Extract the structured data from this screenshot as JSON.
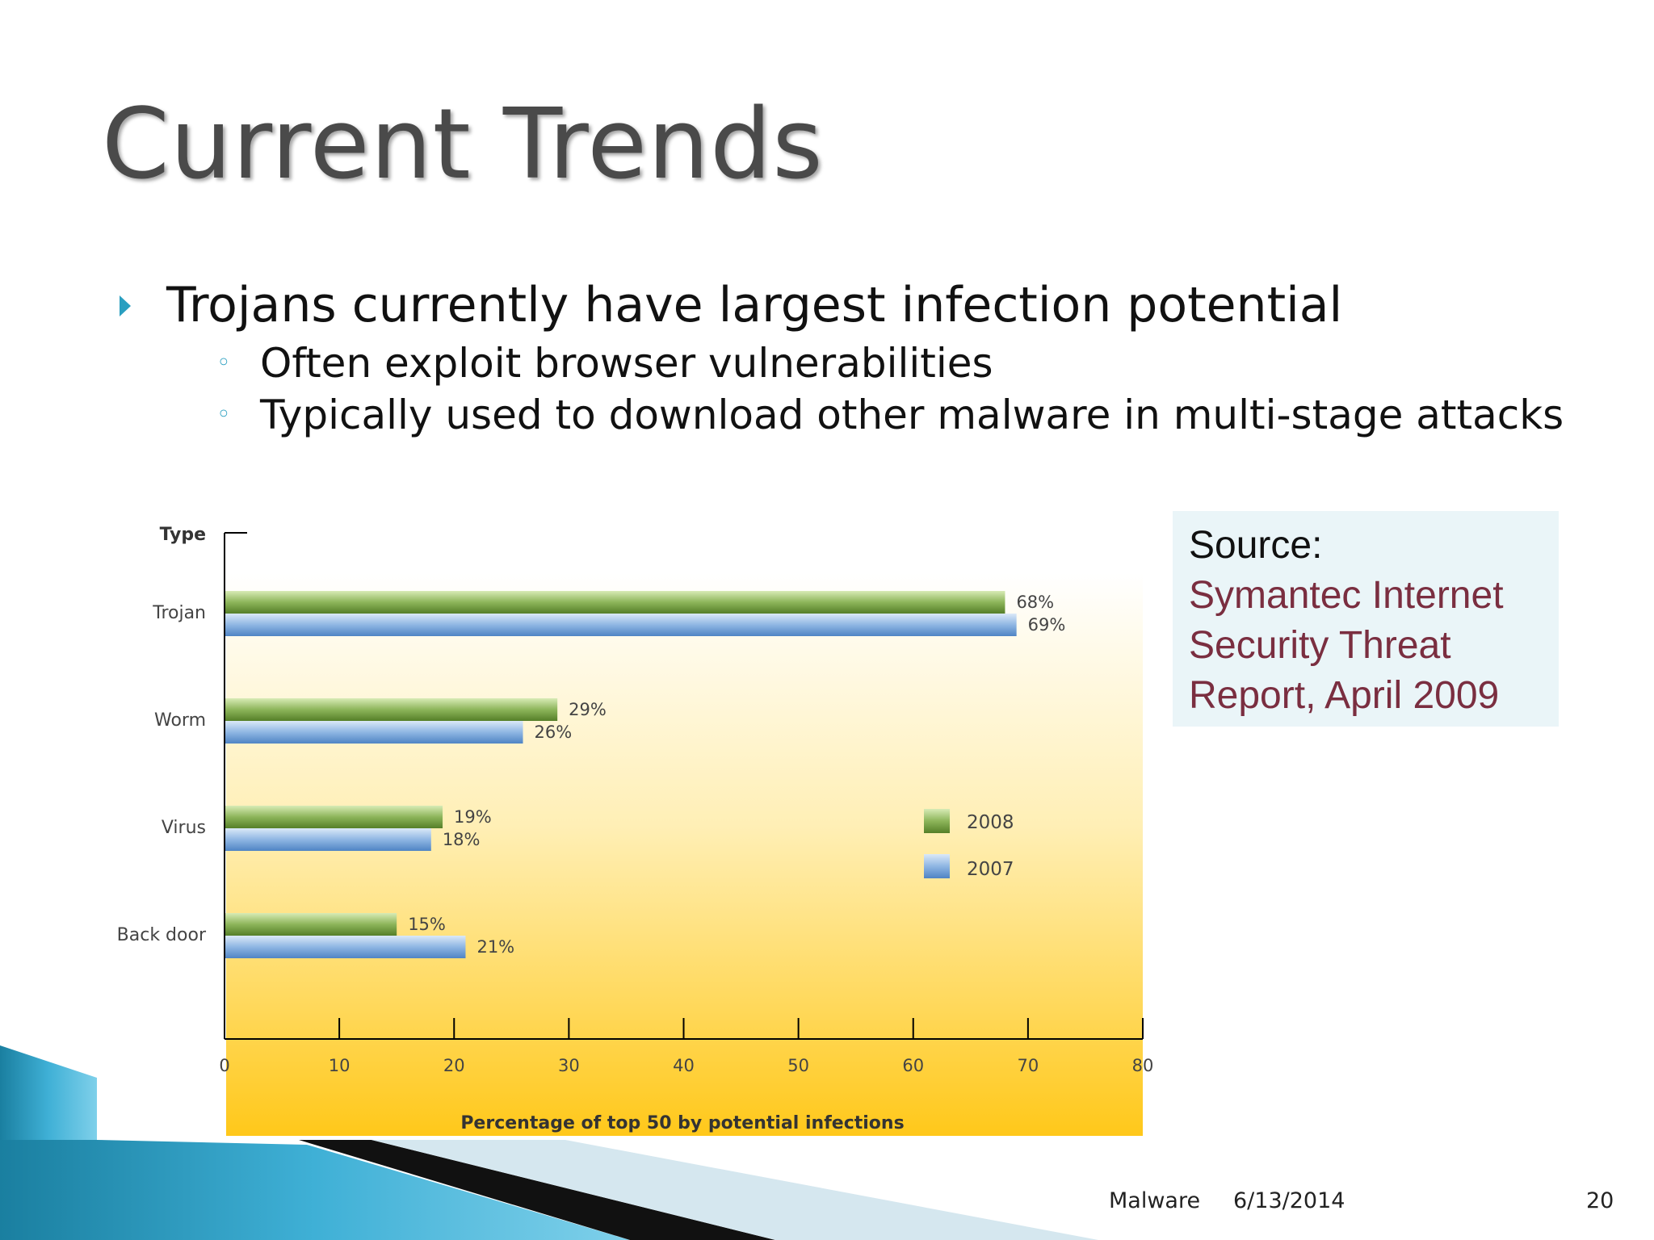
{
  "slide": {
    "title": "Current Trends",
    "bullet": "Trojans currently have largest infection potential",
    "sub_bullets": [
      "Often exploit browser vulnerabilities",
      "Typically used to download other malware in multi-stage attacks"
    ],
    "source_label": "Source:",
    "source_text": "Symantec Internet Security Threat Report, April 2009",
    "footer": {
      "left": "Malware",
      "date": "6/13/2014",
      "page": "20"
    },
    "bullet_color": "#2a9fc0",
    "source_color": "#7a2e40"
  },
  "chart_data": {
    "type": "bar",
    "orientation": "horizontal",
    "ylabel": "Type",
    "xlabel": "Percentage of top 50 by potential infections",
    "categories": [
      "Trojan",
      "Worm",
      "Virus",
      "Back door"
    ],
    "series": [
      {
        "name": "2008",
        "values": [
          68,
          29,
          19,
          15
        ],
        "labels": [
          "68%",
          "29%",
          "19%",
          "15%"
        ],
        "color": "#6d9a3a"
      },
      {
        "name": "2007",
        "values": [
          69,
          26,
          18,
          21
        ],
        "labels": [
          "69%",
          "26%",
          "18%",
          "21%"
        ],
        "color": "#5b8fce"
      }
    ],
    "xlim": [
      0,
      80
    ],
    "xticks": [
      0,
      10,
      20,
      30,
      40,
      50,
      60,
      70,
      80
    ],
    "legend": "right",
    "grid": false
  }
}
